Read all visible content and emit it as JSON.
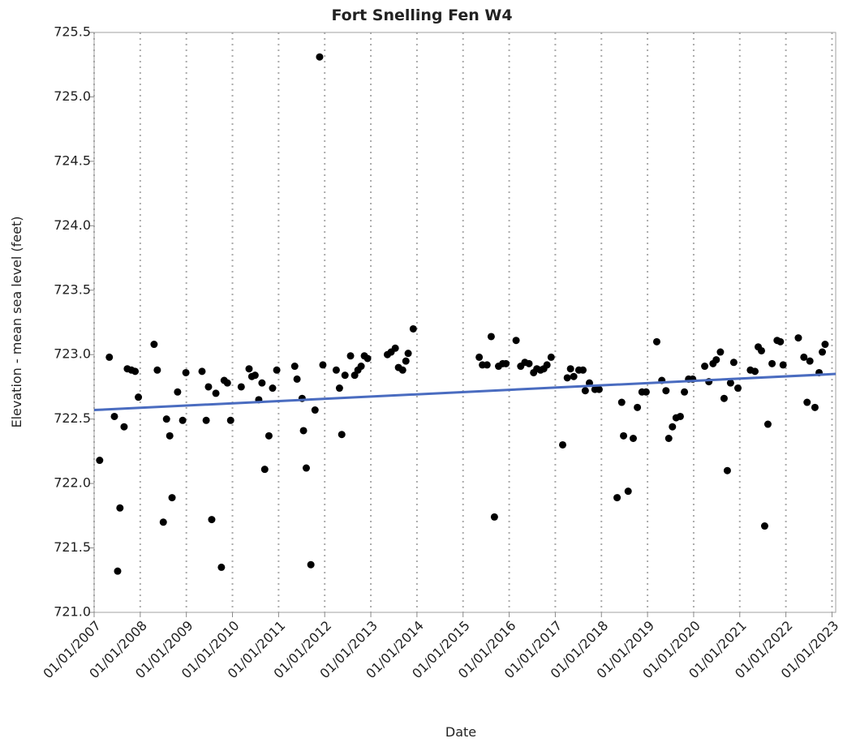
{
  "chart_data": {
    "type": "scatter",
    "title": "Fort Snelling Fen W4",
    "xlabel": "Date",
    "ylabel": "Elevation - mean sea level (feet)",
    "xlim": [
      2007,
      2023.08
    ],
    "ylim": [
      721,
      725.5
    ],
    "xticks": [
      {
        "value": 2007,
        "label": "01/01/2007"
      },
      {
        "value": 2008,
        "label": "01/01/2008"
      },
      {
        "value": 2009,
        "label": "01/01/2009"
      },
      {
        "value": 2010,
        "label": "01/01/2010"
      },
      {
        "value": 2011,
        "label": "01/01/2011"
      },
      {
        "value": 2012,
        "label": "01/01/2012"
      },
      {
        "value": 2013,
        "label": "01/01/2013"
      },
      {
        "value": 2014,
        "label": "01/01/2014"
      },
      {
        "value": 2015,
        "label": "01/01/2015"
      },
      {
        "value": 2016,
        "label": "01/01/2016"
      },
      {
        "value": 2017,
        "label": "01/01/2017"
      },
      {
        "value": 2018,
        "label": "01/01/2018"
      },
      {
        "value": 2019,
        "label": "01/01/2019"
      },
      {
        "value": 2020,
        "label": "01/01/2020"
      },
      {
        "value": 2021,
        "label": "01/01/2021"
      },
      {
        "value": 2022,
        "label": "01/01/2022"
      },
      {
        "value": 2023,
        "label": "01/01/2023"
      }
    ],
    "yticks": [
      {
        "value": 721,
        "label": "721.0"
      },
      721.5,
      {
        "value": 722,
        "label": "722.0"
      },
      722.5,
      {
        "value": 723,
        "label": "723.0"
      },
      723.5,
      {
        "value": 724,
        "label": "724.0"
      },
      724.5,
      {
        "value": 725,
        "label": "725.0"
      },
      725.5
    ],
    "xgrid": true,
    "color": "#000000",
    "x": [
      2007.12,
      2007.33,
      2007.44,
      2007.51,
      2007.56,
      2007.65,
      2007.72,
      2007.81,
      2007.89,
      2007.96,
      2008.3,
      2008.37,
      2008.5,
      2008.57,
      2008.64,
      2008.69,
      2008.81,
      2008.92,
      2008.99,
      2009.34,
      2009.43,
      2009.48,
      2009.55,
      2009.64,
      2009.76,
      2009.82,
      2009.89,
      2009.96,
      2010.19,
      2010.36,
      2010.42,
      2010.49,
      2010.57,
      2010.64,
      2010.7,
      2010.79,
      2010.87,
      2010.96,
      2011.35,
      2011.4,
      2011.51,
      2011.54,
      2011.6,
      2011.7,
      2011.79,
      2011.89,
      2011.96,
      2012.25,
      2012.32,
      2012.37,
      2012.44,
      2012.56,
      2012.65,
      2012.72,
      2012.79,
      2012.86,
      2012.93,
      2013.36,
      2013.44,
      2013.53,
      2013.6,
      2013.69,
      2013.76,
      2013.81,
      2013.92,
      2015.35,
      2015.42,
      2015.52,
      2015.61,
      2015.68,
      2015.77,
      2015.86,
      2015.93,
      2016.15,
      2016.25,
      2016.34,
      2016.43,
      2016.53,
      2016.6,
      2016.68,
      2016.75,
      2016.82,
      2016.91,
      2017.16,
      2017.26,
      2017.33,
      2017.4,
      2017.51,
      2017.6,
      2017.65,
      2017.74,
      2017.86,
      2017.95,
      2018.34,
      2018.44,
      2018.48,
      2018.58,
      2018.69,
      2018.78,
      2018.88,
      2018.97,
      2019.2,
      2019.31,
      2019.4,
      2019.46,
      2019.54,
      2019.62,
      2019.71,
      2019.8,
      2019.89,
      2019.98,
      2020.24,
      2020.33,
      2020.42,
      2020.49,
      2020.58,
      2020.66,
      2020.73,
      2020.8,
      2020.87,
      2020.96,
      2021.23,
      2021.33,
      2021.4,
      2021.47,
      2021.54,
      2021.61,
      2021.7,
      2021.81,
      2021.88,
      2021.94,
      2022.27,
      2022.39,
      2022.46,
      2022.52,
      2022.63,
      2022.72,
      2022.79,
      2022.85
    ],
    "values": [
      722.18,
      722.98,
      722.52,
      721.32,
      721.81,
      722.44,
      722.89,
      722.88,
      722.87,
      722.67,
      723.08,
      722.88,
      721.7,
      722.5,
      722.37,
      721.89,
      722.71,
      722.49,
      722.86,
      722.87,
      722.49,
      722.75,
      721.72,
      722.7,
      721.35,
      722.8,
      722.78,
      722.49,
      722.75,
      722.89,
      722.83,
      722.84,
      722.65,
      722.78,
      722.11,
      722.37,
      722.74,
      722.88,
      722.91,
      722.81,
      722.66,
      722.41,
      722.12,
      721.37,
      722.57,
      725.31,
      722.92,
      722.88,
      722.74,
      722.38,
      722.84,
      722.99,
      722.84,
      722.88,
      722.91,
      722.99,
      722.97,
      723.0,
      723.02,
      723.05,
      722.9,
      722.88,
      722.95,
      723.01,
      723.2,
      722.98,
      722.92,
      722.92,
      723.14,
      721.74,
      722.91,
      722.93,
      722.93,
      723.11,
      722.91,
      722.94,
      722.93,
      722.86,
      722.89,
      722.88,
      722.89,
      722.92,
      722.98,
      722.3,
      722.82,
      722.89,
      722.83,
      722.88,
      722.88,
      722.72,
      722.78,
      722.73,
      722.73,
      721.89,
      722.63,
      722.37,
      721.94,
      722.35,
      722.59,
      722.71,
      722.71,
      723.1,
      722.8,
      722.72,
      722.35,
      722.44,
      722.51,
      722.52,
      722.71,
      722.81,
      722.81,
      722.91,
      722.79,
      722.93,
      722.96,
      723.02,
      722.66,
      722.1,
      722.78,
      722.94,
      722.74,
      722.88,
      722.87,
      723.06,
      723.03,
      721.67,
      722.46,
      722.93,
      723.11,
      723.1,
      722.92,
      723.13,
      722.98,
      722.63,
      722.95,
      722.59,
      722.86,
      723.02,
      723.08
    ],
    "trend": {
      "x": [
        2007,
        2023.08
      ],
      "values": [
        722.57,
        722.85
      ],
      "color": "#4a6cc0"
    }
  }
}
